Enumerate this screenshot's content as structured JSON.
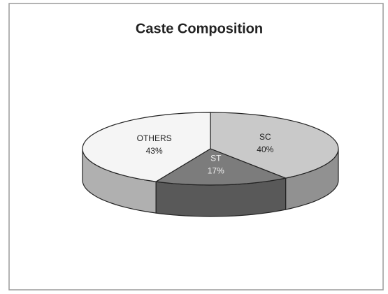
{
  "chart_data": {
    "type": "pie3d",
    "title": "Caste Composition",
    "categories": [
      "SC",
      "ST",
      "OTHERS"
    ],
    "values": [
      40,
      17,
      43
    ],
    "value_labels": [
      "40%",
      "17%",
      "43%"
    ],
    "colors": [
      "#c9c9c9",
      "#7c7c7c",
      "#f5f5f5"
    ]
  }
}
